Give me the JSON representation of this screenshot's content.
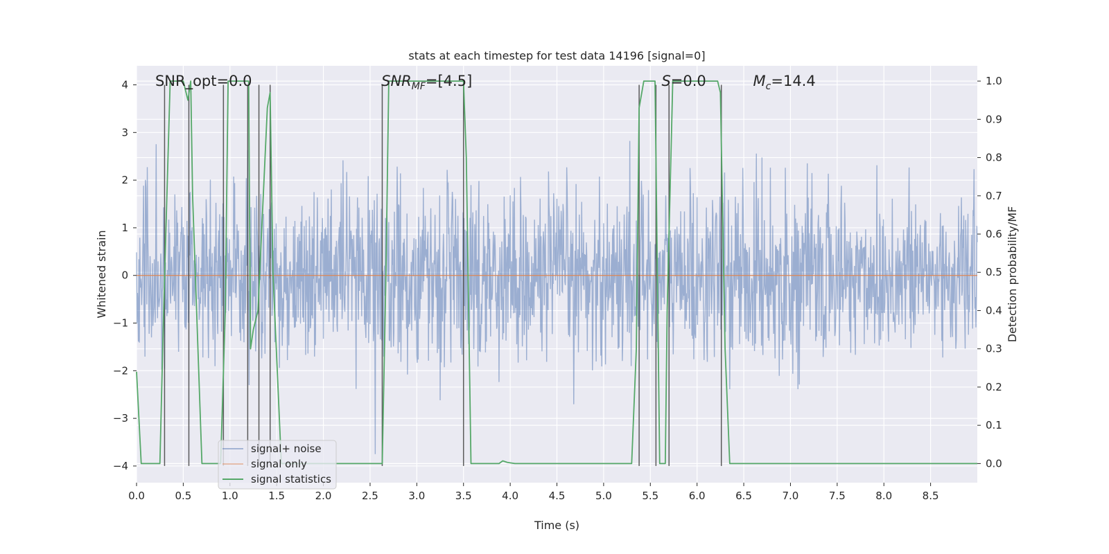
{
  "chart_data": {
    "type": "line",
    "title": "stats at each timestep for test data 14196 [signal=0]",
    "xlabel": "Time (s)",
    "ylabel": "Whitened strain",
    "ylabel_right": "Detection probability/MF",
    "xlim": [
      0.0,
      9.0
    ],
    "ylim": [
      -4.35,
      4.4
    ],
    "ylim_right": [
      -0.05,
      1.04
    ],
    "xticks": [
      "0.0",
      "0.5",
      "1.0",
      "1.5",
      "2.0",
      "2.5",
      "3.0",
      "3.5",
      "4.0",
      "4.5",
      "5.0",
      "5.5",
      "6.0",
      "6.5",
      "7.0",
      "7.5",
      "8.0",
      "8.5"
    ],
    "yticks": [
      "4",
      "3",
      "2",
      "1",
      "0",
      "−1",
      "−2",
      "−3",
      "−4"
    ],
    "yticks_right": [
      "1.0",
      "0.9",
      "0.8",
      "0.7",
      "0.6",
      "0.5",
      "0.4",
      "0.3",
      "0.2",
      "0.1",
      "0.0"
    ],
    "grid": true,
    "legend_position": "lower-left",
    "colors": {
      "noise": "#4c72b0",
      "signal_only": "#dd8452",
      "statistics": "#55a868",
      "vlines": "#404040",
      "background": "#eaeaf2",
      "grid": "#ffffff"
    },
    "annotations": [
      {
        "kind": "plain",
        "text": "SNR_opt=0.0",
        "x": 0.2
      },
      {
        "kind": "sub",
        "base": "SNR",
        "sub": "MF",
        "rest": "=[4.5]",
        "x": 2.62
      },
      {
        "kind": "italic",
        "base": "S",
        "rest": "=0.0",
        "x": 5.62
      },
      {
        "kind": "sub",
        "base": "M",
        "sub": "c",
        "rest": "=14.4",
        "x": 6.6
      }
    ],
    "series": [
      {
        "name": "signal+ noise",
        "kind": "noise",
        "sample_rate": 200,
        "seed": 14196,
        "std": 0.9,
        "y_range": [
          -3.75,
          3.9
        ]
      },
      {
        "name": "signal only",
        "kind": "flat",
        "x": [
          0.0,
          9.0
        ],
        "y": [
          0.0,
          0.0
        ]
      },
      {
        "name": "signal statistics",
        "kind": "line",
        "axis": "right",
        "x": [
          0.0,
          0.05,
          0.25,
          0.29,
          0.36,
          0.5,
          0.55,
          0.58,
          0.6,
          0.7,
          0.9,
          0.95,
          0.98,
          1.0,
          1.2,
          1.22,
          1.25,
          1.3,
          1.4,
          1.43,
          1.46,
          1.55,
          2.63,
          2.67,
          2.7,
          2.75,
          3.5,
          3.53,
          3.58,
          3.65,
          3.88,
          3.92,
          3.97,
          4.05,
          4.5,
          5.0,
          5.3,
          5.35,
          5.38,
          5.43,
          5.55,
          5.58,
          5.6,
          5.66,
          5.68,
          5.74,
          6.22,
          6.25,
          6.3,
          6.35,
          6.9,
          9.0
        ],
        "y": [
          0.24,
          0.0,
          0.0,
          0.4,
          1.0,
          1.0,
          0.95,
          1.0,
          0.7,
          0.0,
          0.0,
          0.4,
          1.0,
          1.0,
          1.0,
          0.3,
          0.35,
          0.4,
          0.93,
          0.97,
          0.5,
          0.0,
          0.0,
          0.5,
          1.0,
          1.0,
          1.0,
          0.8,
          0.0,
          0.0,
          0.0,
          0.007,
          0.003,
          0.0,
          0.0,
          0.0,
          0.0,
          0.3,
          0.93,
          1.0,
          1.0,
          0.4,
          0.0,
          0.0,
          0.4,
          1.0,
          1.0,
          0.97,
          0.3,
          0.0,
          0.0,
          0.0
        ]
      }
    ],
    "vlines": [
      0.3,
      0.56,
      0.93,
      1.19,
      1.31,
      1.43,
      2.63,
      3.5,
      5.38,
      5.56,
      5.7,
      6.26
    ]
  }
}
